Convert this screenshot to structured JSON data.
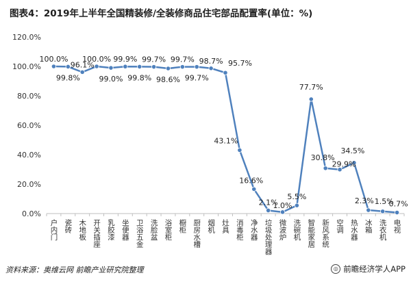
{
  "title": "图表4：2019年上半年全国精装修/全装修商品住宅部品配置率(单位：%)",
  "source_note": "资料来源：奥维云网 前瞻产业研究院整理",
  "brand": "前瞻经济学人APP",
  "chart_data": {
    "type": "line",
    "categories": [
      "户内门",
      "瓷砖",
      "木地板",
      "开关插座",
      "乳胶漆",
      "坐便器",
      "卫浴五金",
      "洗脸盆",
      "浴室柜",
      "橱柜",
      "厨房水槽",
      "烟机",
      "灶具",
      "消毒柜",
      "净水器",
      "垃圾处理器",
      "微波炉",
      "洗碗机",
      "智能家居",
      "新风系统",
      "空调",
      "热水器",
      "冰箱",
      "洗衣机",
      "电视"
    ],
    "values": [
      100.0,
      99.8,
      96.1,
      100.0,
      99.0,
      99.9,
      99.8,
      99.7,
      98.6,
      99.7,
      99.7,
      98.7,
      95.7,
      43.1,
      16.6,
      2.1,
      1.0,
      5.5,
      77.7,
      30.8,
      29.9,
      34.5,
      2.3,
      1.5,
      0.7
    ],
    "value_labels": [
      "100.0%",
      "99.8%",
      "96.1%",
      "100.0%",
      "99.0%",
      "99.9%",
      "99.8%",
      "99.7%",
      "98.6%",
      "99.7%",
      "99.7%",
      "98.7%",
      "95.7%",
      "43.1%",
      "16.6%",
      "2.1%",
      "1.0%",
      "5.5%",
      "77.7%",
      "30.8%",
      "29.9%",
      "34.5%",
      "2.3%",
      "1.5%",
      "0.7%"
    ],
    "ytick_labels": [
      "0.0%",
      "20.0%",
      "40.0%",
      "60.0%",
      "80.0%",
      "100.0%",
      "120.0%"
    ],
    "ylim": [
      0,
      120
    ],
    "ystep": 20,
    "grid": false,
    "line_color": "#4f81bd",
    "marker_color": "#4f81bd"
  }
}
